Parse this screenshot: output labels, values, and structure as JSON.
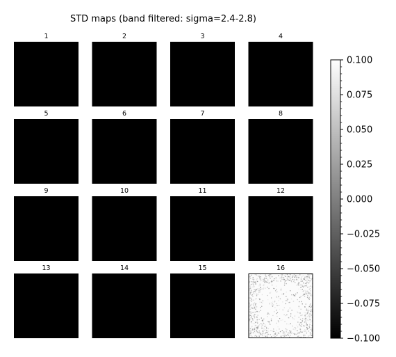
{
  "chart_data": {
    "type": "heatmap",
    "title": "STD maps (band filtered: sigma=2.4-2.8)",
    "colormap": "gray",
    "grid_layout": {
      "rows": 4,
      "cols": 4
    },
    "panels": [
      {
        "label": "1",
        "fill": "black"
      },
      {
        "label": "2",
        "fill": "black"
      },
      {
        "label": "3",
        "fill": "black"
      },
      {
        "label": "4",
        "fill": "black"
      },
      {
        "label": "5",
        "fill": "black"
      },
      {
        "label": "6",
        "fill": "black"
      },
      {
        "label": "7",
        "fill": "black"
      },
      {
        "label": "8",
        "fill": "black"
      },
      {
        "label": "9",
        "fill": "black"
      },
      {
        "label": "10",
        "fill": "black"
      },
      {
        "label": "11",
        "fill": "black"
      },
      {
        "label": "12",
        "fill": "black"
      },
      {
        "label": "13",
        "fill": "black"
      },
      {
        "label": "14",
        "fill": "black"
      },
      {
        "label": "15",
        "fill": "black"
      },
      {
        "label": "16",
        "fill": "speckled-white"
      }
    ],
    "colorbar": {
      "min": -0.1,
      "max": 0.1,
      "ticks": [
        "0.100",
        "0.075",
        "0.050",
        "0.025",
        "0.000",
        "−0.025",
        "−0.050",
        "−0.075",
        "−0.100"
      ]
    }
  }
}
